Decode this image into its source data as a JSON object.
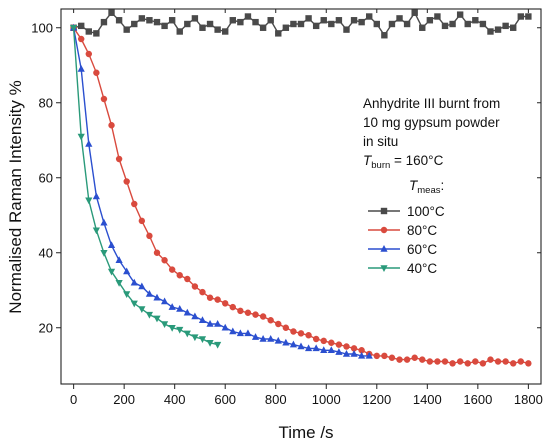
{
  "chart_data": {
    "type": "line",
    "xlabel": "Time /s",
    "ylabel": "Normalised Raman Intensity %",
    "xlim": [
      -50,
      1850
    ],
    "ylim": [
      5,
      105
    ],
    "xticks": [
      0,
      200,
      400,
      600,
      800,
      1000,
      1200,
      1400,
      1600,
      1800
    ],
    "yticks": [
      20,
      40,
      60,
      80,
      100
    ],
    "grid": false,
    "legend_placement": "right",
    "annotation": {
      "line1": "Anhydrite III burnt from",
      "line2": "10 mg gypsum powder",
      "line3": "in situ",
      "burn_symbol": "T",
      "burn_subscript": "burn",
      "burn_value": " = 160°C"
    },
    "legend_title": {
      "symbol": "T",
      "subscript": "meas",
      "suffix": ":"
    },
    "series": [
      {
        "name": "100°C",
        "color": "#4a4a4a",
        "marker": "square",
        "x": [
          0,
          30,
          60,
          90,
          120,
          150,
          180,
          210,
          240,
          270,
          300,
          330,
          360,
          390,
          420,
          450,
          480,
          510,
          540,
          570,
          600,
          630,
          660,
          690,
          720,
          750,
          780,
          810,
          840,
          870,
          900,
          930,
          960,
          990,
          1020,
          1050,
          1080,
          1110,
          1140,
          1170,
          1200,
          1230,
          1260,
          1290,
          1320,
          1350,
          1380,
          1410,
          1440,
          1470,
          1500,
          1530,
          1560,
          1590,
          1620,
          1650,
          1680,
          1710,
          1740,
          1770,
          1800
        ],
        "y": [
          100,
          100.5,
          99,
          98.5,
          101.5,
          104,
          102,
          99.5,
          101,
          102.5,
          102,
          101.5,
          100.5,
          102,
          99,
          101,
          102.5,
          100,
          101,
          99.5,
          99,
          102,
          101.5,
          103,
          101.5,
          100,
          102,
          98.5,
          100,
          101,
          101,
          102.5,
          100.5,
          102,
          101,
          102,
          99.5,
          102,
          101.5,
          103,
          101,
          98,
          101,
          102.5,
          101,
          104,
          100,
          102,
          103,
          100.5,
          101,
          103.5,
          101,
          102,
          101,
          99,
          99.5,
          100.5,
          100,
          103,
          103
        ]
      },
      {
        "name": "80°C",
        "color": "#d94a3e",
        "marker": "circle",
        "x": [
          0,
          30,
          60,
          90,
          120,
          150,
          180,
          210,
          240,
          270,
          300,
          330,
          360,
          390,
          420,
          450,
          480,
          510,
          540,
          570,
          600,
          630,
          660,
          690,
          720,
          750,
          780,
          810,
          840,
          870,
          900,
          930,
          960,
          990,
          1020,
          1050,
          1080,
          1110,
          1140,
          1170,
          1200,
          1230,
          1260,
          1290,
          1320,
          1350,
          1380,
          1410,
          1440,
          1470,
          1500,
          1530,
          1560,
          1590,
          1620,
          1650,
          1680,
          1710,
          1740,
          1770,
          1800
        ],
        "y": [
          100,
          97,
          93,
          88,
          81,
          74,
          65,
          59,
          53,
          48.5,
          44.5,
          40,
          38,
          35.5,
          34,
          33,
          31,
          29.5,
          28,
          27.5,
          26.5,
          25.5,
          24.5,
          24,
          23.5,
          23,
          22,
          21,
          20,
          19,
          18.5,
          18,
          17,
          16.5,
          16,
          15.5,
          15,
          14.5,
          14,
          13,
          12.5,
          12.5,
          12,
          11.5,
          11.5,
          12,
          11.5,
          11,
          11,
          11,
          10.5,
          11,
          10.5,
          11,
          10.5,
          11.5,
          11,
          11,
          10.5,
          11,
          10.5
        ]
      },
      {
        "name": "60°C",
        "color": "#2b4fcf",
        "marker": "triangle-up",
        "x": [
          0,
          30,
          60,
          90,
          120,
          150,
          180,
          210,
          240,
          270,
          300,
          330,
          360,
          390,
          420,
          450,
          480,
          510,
          540,
          570,
          600,
          630,
          660,
          690,
          720,
          750,
          780,
          810,
          840,
          870,
          900,
          930,
          960,
          990,
          1020,
          1050,
          1080,
          1110,
          1140,
          1170
        ],
        "y": [
          100,
          89,
          69,
          55,
          48,
          42,
          38,
          35,
          32,
          31,
          29,
          28,
          27,
          25.5,
          25,
          24,
          23,
          22,
          21,
          21,
          20,
          19,
          18.5,
          18.5,
          17.5,
          17,
          17,
          16.5,
          16,
          15.5,
          15,
          14.5,
          14.5,
          14,
          14,
          13.5,
          13,
          13,
          12.5,
          12.5
        ]
      },
      {
        "name": "40°C",
        "color": "#2a9a7a",
        "marker": "triangle-down",
        "x": [
          0,
          30,
          60,
          90,
          120,
          150,
          180,
          210,
          240,
          270,
          300,
          330,
          360,
          390,
          420,
          450,
          480,
          510,
          540,
          570
        ],
        "y": [
          100,
          71,
          54,
          46,
          40,
          35,
          32,
          29,
          26.5,
          25,
          23.5,
          22.5,
          21,
          20,
          19.5,
          18.5,
          17.5,
          17,
          16,
          15.5
        ]
      }
    ]
  }
}
